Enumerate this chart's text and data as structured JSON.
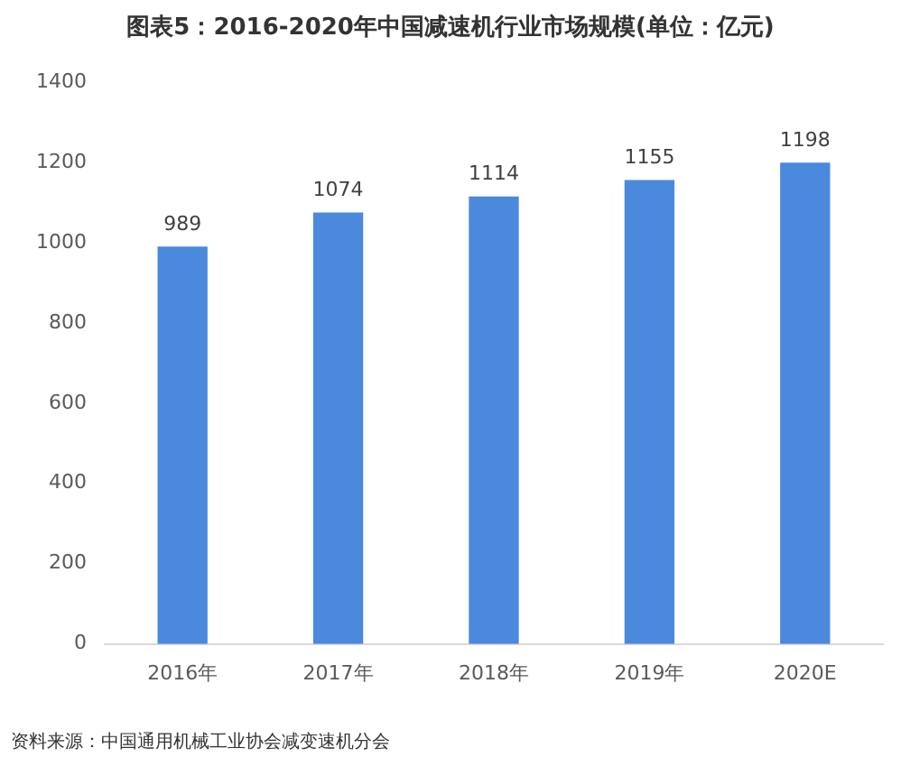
{
  "chart_data": {
    "type": "bar",
    "title": "图表5：2016-2020年中国减速机行业市场规模(单位：亿元)",
    "categories": [
      "2016年",
      "2017年",
      "2018年",
      "2019年",
      "2020E"
    ],
    "values": [
      989,
      1074,
      1114,
      1155,
      1198
    ],
    "color": "#4a89dc",
    "ylim": [
      0,
      1400
    ],
    "yticks": [
      0,
      200,
      400,
      600,
      800,
      1000,
      1200,
      1400
    ],
    "grid": false,
    "data_labels": true,
    "annotations": [
      "资料来源：中国通用机械工业协会减变速机分会"
    ]
  }
}
